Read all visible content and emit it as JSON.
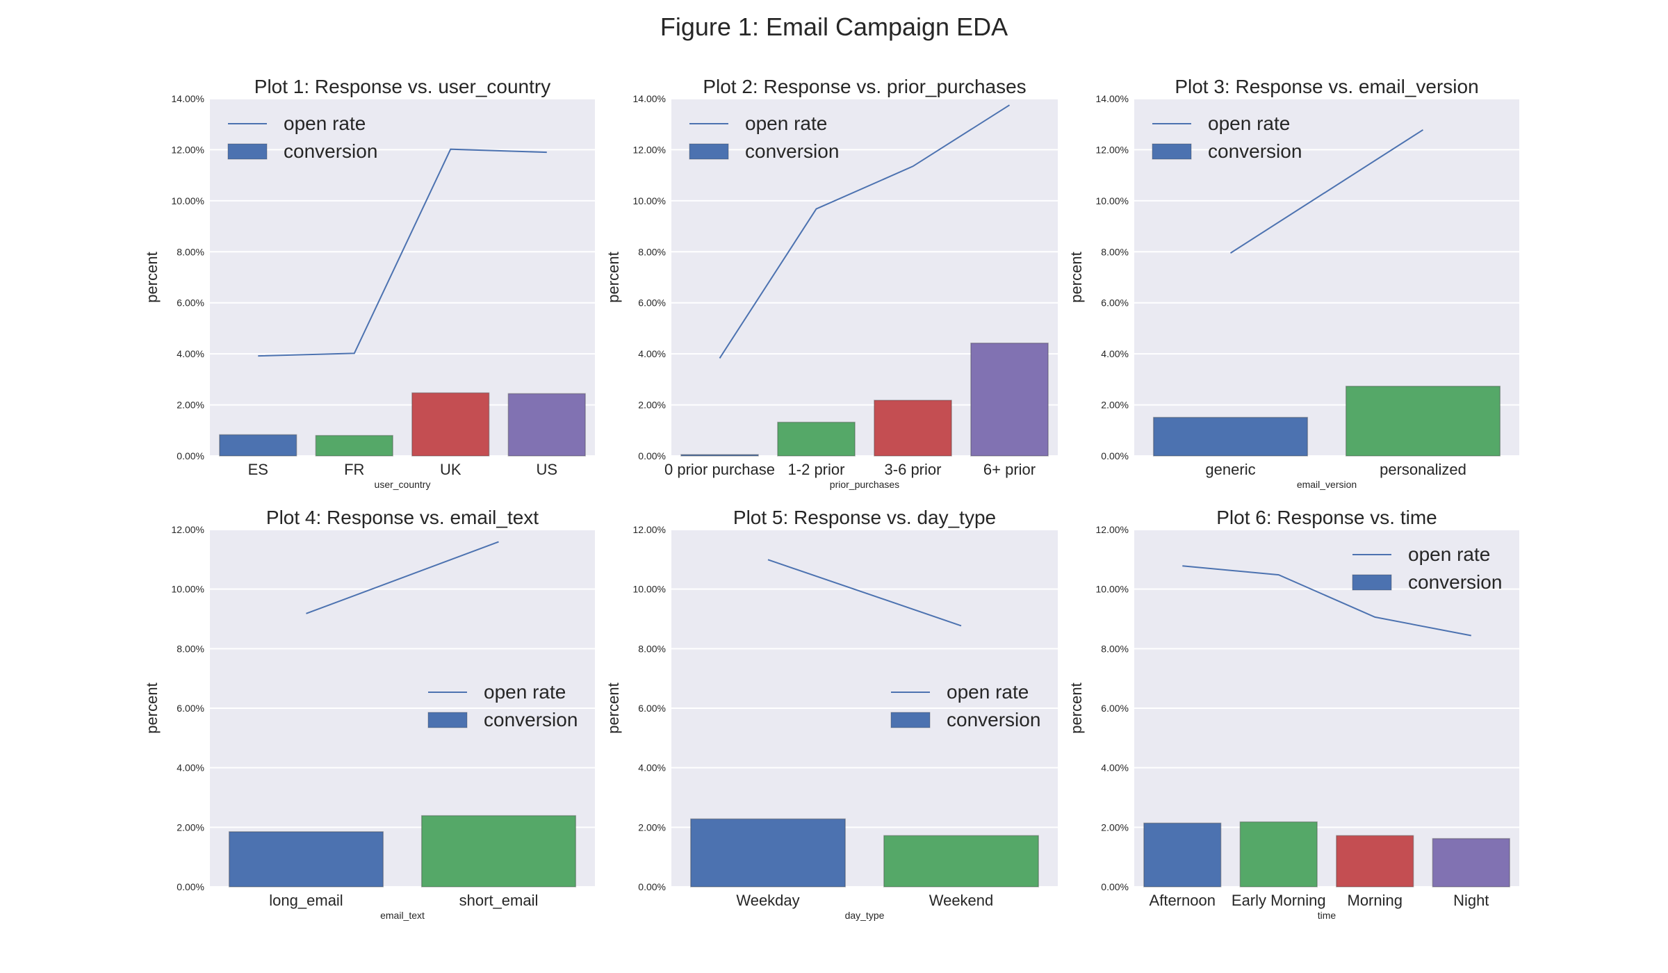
{
  "figure_title": "Figure 1: Email Campaign EDA",
  "colors": {
    "background": "#eaeaf2",
    "grid": "#ffffff",
    "line": "#4c72b0",
    "bars": [
      "#4c72b0",
      "#55a868",
      "#c44e52",
      "#8172b2"
    ],
    "text": "#262626"
  },
  "legend_labels": {
    "line": "open rate",
    "bar": "conversion"
  },
  "chart_data": [
    {
      "type": "bar",
      "title": "Plot 1: Response vs. user_country",
      "xlabel": "user_country",
      "ylabel": "percent",
      "ylim": [
        0,
        0.14
      ],
      "yticks": [
        "0.00%",
        "2.00%",
        "4.00%",
        "6.00%",
        "8.00%",
        "10.00%",
        "12.00%",
        "14.00%"
      ],
      "categories": [
        "ES",
        "FR",
        "UK",
        "US"
      ],
      "series": [
        {
          "name": "open rate",
          "type": "line",
          "values": [
            0.0392,
            0.0402,
            0.1202,
            0.119
          ]
        },
        {
          "name": "conversion",
          "type": "bar",
          "values": [
            0.0083,
            0.008,
            0.0247,
            0.0244
          ]
        }
      ],
      "legend": "upper-left",
      "grid": true
    },
    {
      "type": "bar",
      "title": "Plot 2: Response vs. prior_purchases",
      "xlabel": "prior_purchases",
      "ylabel": "percent",
      "ylim": [
        0,
        0.14
      ],
      "yticks": [
        "0.00%",
        "2.00%",
        "4.00%",
        "6.00%",
        "8.00%",
        "10.00%",
        "12.00%",
        "14.00%"
      ],
      "categories": [
        "0 prior purchase",
        "1-2 prior",
        "3-6 prior",
        "6+ prior"
      ],
      "series": [
        {
          "name": "open rate",
          "type": "line",
          "values": [
            0.0383,
            0.0968,
            0.1135,
            0.1375
          ]
        },
        {
          "name": "conversion",
          "type": "bar",
          "values": [
            0.0005,
            0.0132,
            0.0218,
            0.0442
          ]
        }
      ],
      "legend": "upper-left",
      "grid": true
    },
    {
      "type": "bar",
      "title": "Plot 3: Response vs. email_version",
      "xlabel": "email_version",
      "ylabel": "percent",
      "ylim": [
        0,
        0.14
      ],
      "yticks": [
        "0.00%",
        "2.00%",
        "4.00%",
        "6.00%",
        "8.00%",
        "10.00%",
        "12.00%",
        "14.00%"
      ],
      "categories": [
        "generic",
        "personalized"
      ],
      "series": [
        {
          "name": "open rate",
          "type": "line",
          "values": [
            0.0795,
            0.1278
          ]
        },
        {
          "name": "conversion",
          "type": "bar",
          "values": [
            0.0151,
            0.0273
          ]
        }
      ],
      "legend": "upper-left",
      "grid": true
    },
    {
      "type": "bar",
      "title": "Plot 4: Response vs. email_text",
      "xlabel": "email_text",
      "ylabel": "percent",
      "ylim": [
        0,
        0.12
      ],
      "yticks": [
        "0.00%",
        "2.00%",
        "4.00%",
        "6.00%",
        "8.00%",
        "10.00%",
        "12.00%"
      ],
      "categories": [
        "long_email",
        "short_email"
      ],
      "series": [
        {
          "name": "open rate",
          "type": "line",
          "values": [
            0.0918,
            0.1159
          ]
        },
        {
          "name": "conversion",
          "type": "bar",
          "values": [
            0.0185,
            0.0239
          ]
        }
      ],
      "legend": "center-right",
      "grid": true
    },
    {
      "type": "bar",
      "title": "Plot 5: Response vs. day_type",
      "xlabel": "day_type",
      "ylabel": "percent",
      "ylim": [
        0,
        0.12
      ],
      "yticks": [
        "0.00%",
        "2.00%",
        "4.00%",
        "6.00%",
        "8.00%",
        "10.00%",
        "12.00%"
      ],
      "categories": [
        "Weekday",
        "Weekend"
      ],
      "series": [
        {
          "name": "open rate",
          "type": "line",
          "values": [
            0.1099,
            0.0877
          ]
        },
        {
          "name": "conversion",
          "type": "bar",
          "values": [
            0.0228,
            0.0172
          ]
        }
      ],
      "legend": "center-right",
      "grid": true
    },
    {
      "type": "bar",
      "title": "Plot 6: Response vs. time",
      "xlabel": "time",
      "ylabel": "percent",
      "ylim": [
        0,
        0.12
      ],
      "yticks": [
        "0.00%",
        "2.00%",
        "4.00%",
        "6.00%",
        "8.00%",
        "10.00%",
        "12.00%"
      ],
      "categories": [
        "Afternoon",
        "Early Morning",
        "Morning",
        "Night"
      ],
      "series": [
        {
          "name": "open rate",
          "type": "line",
          "values": [
            0.1078,
            0.1048,
            0.0906,
            0.0844
          ]
        },
        {
          "name": "conversion",
          "type": "bar",
          "values": [
            0.0214,
            0.0218,
            0.0172,
            0.0162
          ]
        }
      ],
      "legend": "upper-right",
      "grid": true
    }
  ]
}
